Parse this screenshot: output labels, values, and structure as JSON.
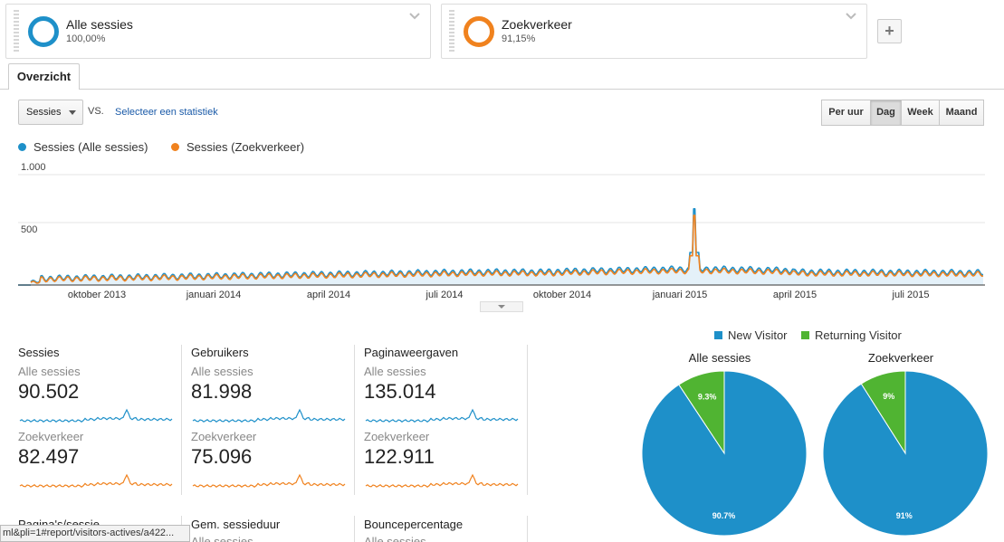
{
  "segments": [
    {
      "name": "Alle sessies",
      "value": "100,00%",
      "color": "#1e90c9"
    },
    {
      "name": "Zoekverkeer",
      "value": "91,15%",
      "color": "#f0821e"
    }
  ],
  "add_segment_label": "+",
  "tab": {
    "label": "Overzicht"
  },
  "controls": {
    "metric_select": "Sessies",
    "vs_label": "VS.",
    "compare_link": "Selecteer een statistiek",
    "granularity": [
      "Per uur",
      "Dag",
      "Week",
      "Maand"
    ],
    "granularity_active": "Dag"
  },
  "chart_data": {
    "type": "line",
    "series": [
      {
        "name": "Sessies (Alle sessies)",
        "color": "#1e90c9"
      },
      {
        "name": "Sessies (Zoekverkeer)",
        "color": "#f0821e"
      }
    ],
    "y_ticks": [
      "1.000",
      "500"
    ],
    "ylim": [
      0,
      1000
    ],
    "x_ticks": [
      "oktober 2013",
      "januari 2014",
      "april 2014",
      "juli 2014",
      "oktober 2014",
      "januari 2015",
      "april 2015",
      "juli 2015"
    ],
    "x_range": [
      "2013-08",
      "2015-08"
    ],
    "spike": {
      "date": "januari 2015",
      "alle_sessies": 690,
      "zoekverkeer": 630
    },
    "approx_level_start": 60,
    "approx_level_mid": 120,
    "approx_level_end": 100,
    "grid": true
  },
  "metrics": [
    {
      "title": "Sessies",
      "seg1": "Alle sessies",
      "val1": "90.502",
      "seg2": "Zoekverkeer",
      "val2": "82.497"
    },
    {
      "title": "Gebruikers",
      "seg1": "Alle sessies",
      "val1": "81.998",
      "seg2": "Zoekverkeer",
      "val2": "75.096"
    },
    {
      "title": "Paginaweergaven",
      "seg1": "Alle sessies",
      "val1": "135.014",
      "seg2": "Zoekverkeer",
      "val2": "122.911"
    }
  ],
  "metrics_row2": [
    {
      "title": "Pagina's/sessie",
      "seg1": "Alle sessies"
    },
    {
      "title": "Gem. sessieduur",
      "seg1": "Alle sessies"
    },
    {
      "title": "Bouncepercentage",
      "seg1": "Alle sessies"
    }
  ],
  "pies": {
    "legend": [
      {
        "name": "New Visitor",
        "color": "#1e90c9"
      },
      {
        "name": "Returning Visitor",
        "color": "#50b432"
      }
    ],
    "charts": [
      {
        "title": "Alle sessies",
        "new_pct": 90.7,
        "ret_pct": 9.3,
        "new_label": "90.7%",
        "ret_label": "9.3%"
      },
      {
        "title": "Zoekverkeer",
        "new_pct": 91,
        "ret_pct": 9,
        "new_label": "91%",
        "ret_label": "9%"
      }
    ]
  },
  "status_url": "ml&pli=1#report/visitors-actives/a422..."
}
